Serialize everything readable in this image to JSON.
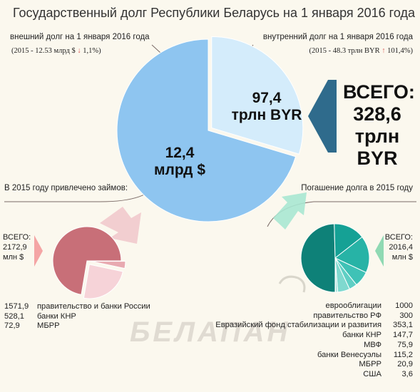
{
  "title": "Государственный долг Республики Беларусь на 1 января 2016 года",
  "external": {
    "header": "внешний долг на 1 января 2016 года",
    "prev_text": "(2015 - 12.53 млрд $",
    "change_arrow": "↓",
    "change_value": "1,1%)"
  },
  "internal": {
    "header": "внутренний долг на 1 января 2016 года",
    "prev_text": "(2015 - 48.3 трлн BYR",
    "change_arrow": "↑",
    "change_value": "101,4%)"
  },
  "main_pie_labels": {
    "external_line1": "12,4",
    "external_line2": "млрд $",
    "internal_line1": "97,4",
    "internal_line2": "трлн BYR"
  },
  "total": {
    "line1": "ВСЕГО:",
    "line2": "328,6",
    "line3": "трлн",
    "line4": "BYR"
  },
  "loans": {
    "header": "В 2015 году привлечено займов:",
    "total_line1": "ВСЕГО:",
    "total_line2": "2172,9",
    "total_line3": "млн $",
    "items": [
      {
        "value": "1571,9",
        "label": "правительство и банки России"
      },
      {
        "value": "528,1",
        "label": "банки КНР"
      },
      {
        "value": "72,9",
        "label": "МБРР"
      }
    ]
  },
  "repayment": {
    "header": "Погашение долга в 2015 году",
    "total_line1": "ВСЕГО:",
    "total_line2": "2016,4",
    "total_line3": "млн $",
    "items": [
      {
        "label": "еврооблигации",
        "value": "1000"
      },
      {
        "label": "правительство РФ",
        "value": "300"
      },
      {
        "label": "Евразийский фонд стабилизации и развития",
        "value": "353,1"
      },
      {
        "label": "банки КНР",
        "value": "147,7"
      },
      {
        "label": "МВФ",
        "value": "75,9"
      },
      {
        "label": "банки Венесуэлы",
        "value": "115,2"
      },
      {
        "label": "МБРР",
        "value": "20,9"
      },
      {
        "label": "США",
        "value": "3,6"
      }
    ]
  },
  "watermark": "БЕЛАПАН",
  "colors": {
    "external": "#8ec5f0",
    "internal": "#d4ecfb",
    "loans_main": "#c86f78",
    "loans_light": "#f6d3d8",
    "repay_dark": "#0e8178",
    "repay_light": "#a8e5dd",
    "total_arrow": "#2f6b8c"
  },
  "chart_data": [
    {
      "type": "pie",
      "title": "Государственный долг Республики Беларусь на 1 января 2016 года",
      "categories": [
        "внешний долг на 1 января 2016 года",
        "внутренний долг на 1 января 2016 года"
      ],
      "values": [
        231.2,
        97.4
      ]
    },
    {
      "type": "pie",
      "title": "В 2015 году привлечено займов:",
      "categories": [
        "правительство и банки России",
        "банки КНР",
        "МБРР"
      ],
      "values": [
        1571.9,
        528.1,
        72.9
      ]
    },
    {
      "type": "pie",
      "title": "Погашение долга в 2015 году",
      "categories": [
        "еврооблигации",
        "правительство РФ",
        "Евразийский фонд стабилизации и развития",
        "банки КНР",
        "МВФ",
        "банки Венесуэлы",
        "МБРР",
        "США"
      ],
      "values": [
        1000,
        300,
        353.1,
        147.7,
        75.9,
        115.2,
        20.9,
        3.6
      ]
    }
  ]
}
